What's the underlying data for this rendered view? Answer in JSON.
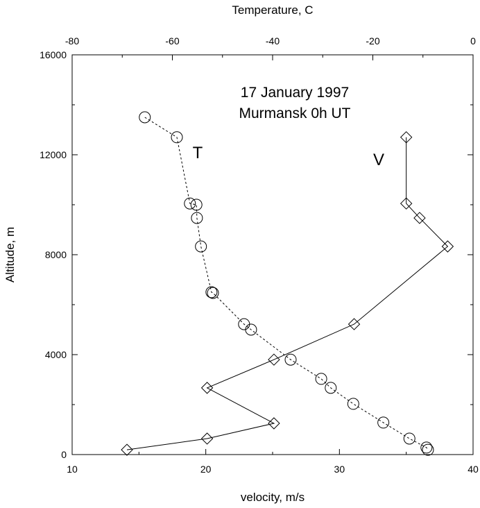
{
  "chart_data": {
    "type": "line",
    "annotations": [
      "17 January 1997",
      "Murmansk 0h UT"
    ],
    "xlabel": "velocity, m/s",
    "x2label": "Temperature, C",
    "ylabel": "Altitude, m",
    "xlim": [
      10,
      40
    ],
    "xticks": [
      10,
      20,
      30,
      40
    ],
    "x2lim": [
      -80,
      0
    ],
    "x2ticks": [
      -80,
      -60,
      -40,
      -20,
      0
    ],
    "ylim": [
      0,
      16000
    ],
    "yticks": [
      0,
      4000,
      8000,
      12000,
      16000
    ],
    "color": "#000000",
    "series": [
      {
        "name": "T",
        "axis": "x2",
        "marker": "circle",
        "dashed": true,
        "x": [
          -65.5,
          -59.1,
          -56.5,
          -55.2,
          -55.1,
          -54.3,
          -52.2,
          -51.9,
          -45.7,
          -44.3,
          -36.4,
          -30.3,
          -28.4,
          -23.9,
          -17.9,
          -12.7,
          -9.3,
          -9.0
        ],
        "values": [
          13500,
          12700,
          10050,
          10000,
          9470,
          8330,
          6500,
          6470,
          5220,
          5000,
          3800,
          3030,
          2670,
          2030,
          1280,
          640,
          280,
          190
        ]
      },
      {
        "name": "V",
        "axis": "x",
        "marker": "diamond",
        "dashed": false,
        "x": [
          35.0,
          35.0,
          36.0,
          38.1,
          31.1,
          25.1,
          20.1,
          25.1,
          20.1,
          14.1
        ],
        "values": [
          12700,
          10050,
          9470,
          8330,
          5220,
          3800,
          2670,
          1250,
          640,
          190
        ]
      }
    ]
  }
}
